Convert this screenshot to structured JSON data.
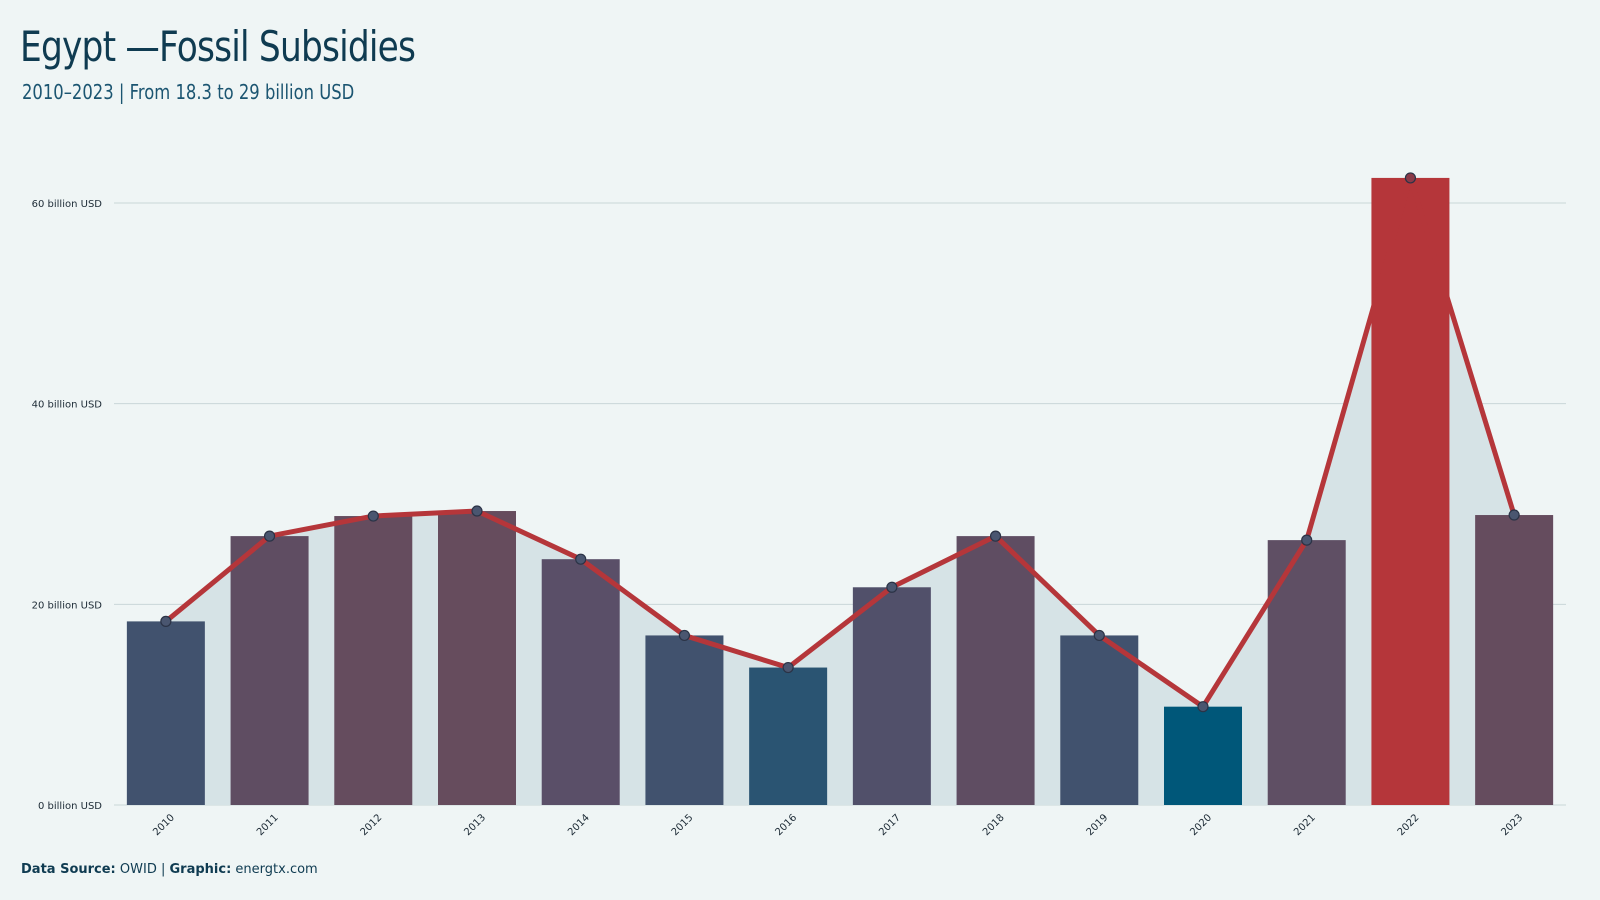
{
  "title": "Egypt —Fossil Subsidies",
  "subtitle": "2010–2023 | From 18.3 to 29 billion USD",
  "footer": {
    "source_label": "Data Source:",
    "source_value": "OWID |",
    "graphic_label": "Graphic:",
    "graphic_value": "energtx.com"
  },
  "colors": {
    "background": "#eff5f5",
    "line": "#b5363a",
    "area": "#d6e3e6",
    "highlight_bar": "#b5363a",
    "lowest_bar": "#005779"
  },
  "chart_data": {
    "type": "bar",
    "categories": [
      "2010",
      "2011",
      "2012",
      "2013",
      "2014",
      "2015",
      "2016",
      "2017",
      "2018",
      "2019",
      "2020",
      "2021",
      "2022",
      "2023"
    ],
    "values": [
      18.3,
      26.8,
      28.8,
      29.3,
      24.5,
      16.9,
      13.7,
      21.7,
      26.8,
      16.9,
      9.8,
      26.4,
      62.5,
      28.9
    ],
    "bar_colors": [
      "#41526e",
      "#5f4d62",
      "#654c5e",
      "#664c5d",
      "#5a4f68",
      "#41526e",
      "#2a5472",
      "#51506a",
      "#5f4d62",
      "#41526e",
      "#005779",
      "#5f4f64",
      "#b5363a",
      "#654c5e"
    ],
    "y_ticks": [
      "0 billion USD",
      "20 billion USD",
      "40 billion USD",
      "60 billion USD"
    ],
    "y_tick_values": [
      0,
      20,
      40,
      60
    ],
    "ylim": [
      0,
      65
    ],
    "grid": true,
    "overlay": "line with markers and shaded area"
  }
}
